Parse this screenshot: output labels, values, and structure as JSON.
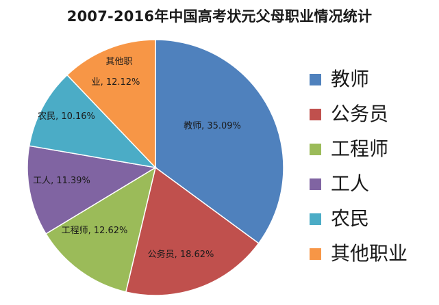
{
  "chart_data": {
    "type": "pie",
    "title": "2007-2016年中国高考状元父母职业情况统计",
    "slices": [
      {
        "name": "教师",
        "value": 35.09,
        "label_lines": [
          "教师, 35.09%"
        ],
        "color": "#4f81bd"
      },
      {
        "name": "公务员",
        "value": 18.62,
        "label_lines": [
          "公务员, 18.62%"
        ],
        "color": "#c0504d"
      },
      {
        "name": "工程师",
        "value": 12.62,
        "label_lines": [
          "工程师, 12.62%"
        ],
        "color": "#9bbb59"
      },
      {
        "name": "工人",
        "value": 11.39,
        "label_lines": [
          "工人, 11.39%"
        ],
        "color": "#8064a2"
      },
      {
        "name": "农民",
        "value": 10.16,
        "label_lines": [
          "农民, 10.16%"
        ],
        "color": "#4bacc6"
      },
      {
        "name": "其他职业",
        "value": 12.12,
        "label_lines": [
          "其他职",
          "业, 12.12%"
        ],
        "color": "#f79646"
      }
    ],
    "legend_position": "right"
  }
}
